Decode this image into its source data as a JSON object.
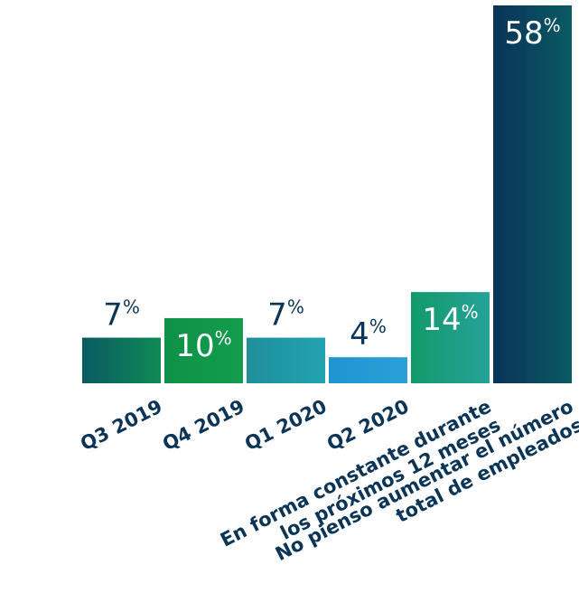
{
  "chart_data": {
    "type": "bar",
    "title": "",
    "xlabel": "",
    "ylabel": "",
    "ylim": [
      0,
      58
    ],
    "grid": false,
    "legend": "none",
    "categories": [
      [
        "Q3 2019"
      ],
      [
        "Q4 2019"
      ],
      [
        "Q1 2020"
      ],
      [
        "Q2 2020"
      ],
      [
        "En forma constante durante",
        "los próximos 12 meses"
      ],
      [
        "No pienso aumentar el número",
        "total de empleados"
      ]
    ],
    "values": [
      7,
      10,
      7,
      4,
      14,
      58
    ],
    "value_unit": "%",
    "label_inside": [
      false,
      true,
      false,
      false,
      true,
      true
    ],
    "colors": [
      [
        "#0a5a62",
        "#0f8a55"
      ],
      [
        "#0e9148",
        "#139c4c"
      ],
      [
        "#1f8f9a",
        "#22a3b2"
      ],
      [
        "#1e95d0",
        "#2aa0d8"
      ],
      [
        "#129a6a",
        "#26a29a"
      ],
      [
        "#0a3358",
        "#0a5a64"
      ]
    ]
  }
}
